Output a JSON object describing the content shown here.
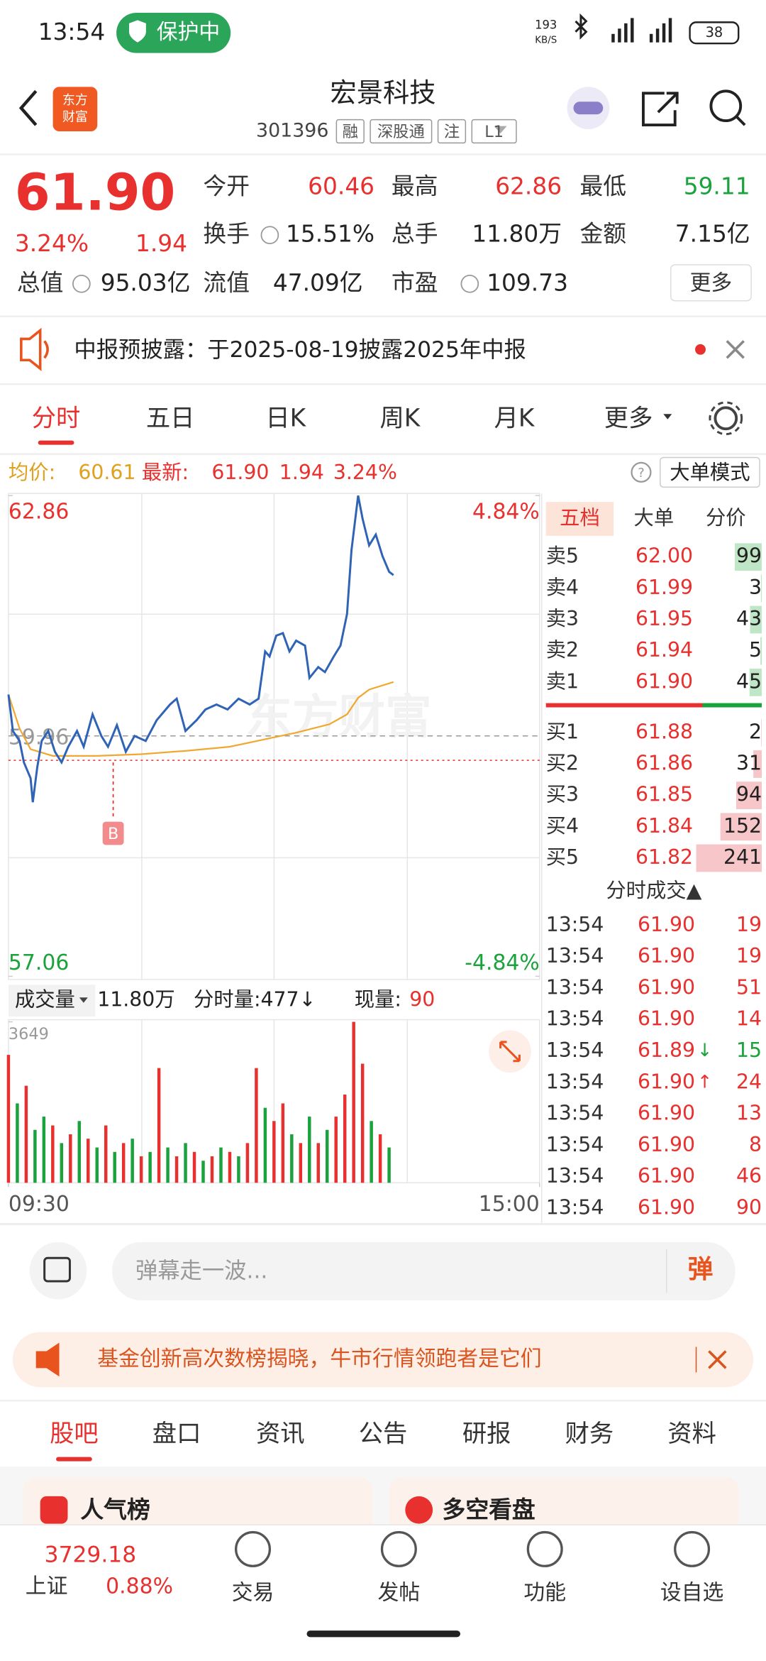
{
  "status_bar": {
    "time": "13:54",
    "badge": "保护中",
    "net_speed": "193",
    "net_unit": "KB/S",
    "battery": "38"
  },
  "header": {
    "title": "宏景科技",
    "code": "301396",
    "tags": [
      "融",
      "深股通",
      "注",
      "L1"
    ]
  },
  "quote": {
    "price": "61.90",
    "change_pct": "3.24%",
    "change": "1.94",
    "more": "更多",
    "fields": [
      {
        "label": "今开",
        "value": "60.46",
        "color": "#e8312f"
      },
      {
        "label": "最高",
        "value": "62.86",
        "color": "#e8312f"
      },
      {
        "label": "最低",
        "value": "59.11",
        "color": "#1aa33c"
      },
      {
        "label": "换手",
        "value": "15.51%",
        "color": "#222222"
      },
      {
        "label": "总手",
        "value": "11.80万",
        "color": "#222222"
      },
      {
        "label": "金额",
        "value": "7.15亿",
        "color": "#222222"
      },
      {
        "label": "总值",
        "value": "95.03亿",
        "color": "#222222"
      },
      {
        "label": "流值",
        "value": "47.09亿",
        "color": "#222222"
      },
      {
        "label": "市盈",
        "value": "109.73",
        "color": "#222222"
      }
    ]
  },
  "notice": {
    "text": "中报预披露：于2025-08-19披露2025年中报"
  },
  "tabs": {
    "items": [
      "分时",
      "五日",
      "日K",
      "周K",
      "月K",
      "更多"
    ],
    "active": 0
  },
  "chart_info": {
    "avg_label": "均价:",
    "avg": "60.61",
    "latest_label": "最新:",
    "latest": "61.90",
    "change": "1.94",
    "change_pct": "3.24%",
    "mode": "大单模式"
  },
  "chart_data": [
    {
      "type": "line",
      "ylim": [
        57.06,
        62.86
      ],
      "yticks": [
        57.06,
        62.86
      ],
      "y2lim": [
        -4.84,
        4.84
      ],
      "y2ticks": [
        {
          "value": -4.84,
          "label": "-4.84%"
        },
        {
          "value": 4.84,
          "label": "4.84%"
        }
      ],
      "xlim": [
        0,
        240
      ],
      "up_color": "#e8312f",
      "down_color": "#1aa33c",
      "reference_line": 59.96,
      "marker": "B",
      "series": [
        {
          "color": "#2f63b5",
          "x": [
            0,
            2,
            5,
            7,
            10,
            11,
            13,
            15,
            18,
            21,
            24,
            27,
            31,
            34,
            38,
            42,
            45,
            49,
            53,
            57,
            62,
            67,
            73,
            76,
            80,
            85,
            89,
            94,
            99,
            104,
            109,
            113,
            116,
            118,
            121,
            124,
            127,
            130,
            134,
            136,
            140,
            143,
            147,
            150,
            153,
            155,
            158,
            160,
            163,
            166,
            169,
            172,
            174
          ],
          "values": [
            60.46,
            60.02,
            59.9,
            59.64,
            59.45,
            59.16,
            59.58,
            59.9,
            60.02,
            59.77,
            59.64,
            59.83,
            60.02,
            59.83,
            60.22,
            59.96,
            59.83,
            60.09,
            59.77,
            59.96,
            59.9,
            60.15,
            60.34,
            60.41,
            60.02,
            60.15,
            60.28,
            60.34,
            60.28,
            60.41,
            60.34,
            60.41,
            60.98,
            60.92,
            61.17,
            61.2,
            60.98,
            61.11,
            61.05,
            60.66,
            60.79,
            60.73,
            60.92,
            61.05,
            61.43,
            62.2,
            62.86,
            62.58,
            62.26,
            62.39,
            62.13,
            61.94,
            61.9
          ]
        },
        {
          "color": "#f0a830",
          "x": [
            0,
            5,
            10,
            20,
            40,
            60,
            80,
            100,
            116,
            130,
            145,
            153,
            158,
            163,
            174
          ],
          "values": [
            60.46,
            60.05,
            59.8,
            59.72,
            59.72,
            59.74,
            59.78,
            59.83,
            59.92,
            60.0,
            60.1,
            60.22,
            60.42,
            60.52,
            60.61
          ]
        }
      ]
    },
    {
      "type": "bar",
      "ylim": [
        0,
        3649
      ],
      "yticks": [
        3649
      ],
      "xlim": [
        0,
        240
      ],
      "xticks": [
        {
          "value": 0,
          "label": "09:30"
        },
        {
          "value": 240,
          "label": "15:00"
        }
      ],
      "x": [
        0,
        4,
        8,
        12,
        16,
        20,
        24,
        28,
        32,
        36,
        40,
        44,
        48,
        52,
        56,
        60,
        64,
        68,
        72,
        76,
        80,
        84,
        88,
        92,
        96,
        100,
        104,
        108,
        112,
        116,
        120,
        124,
        128,
        132,
        136,
        140,
        144,
        148,
        152,
        156,
        160,
        164,
        168,
        172
      ],
      "values": [
        2900,
        1800,
        2200,
        1200,
        1500,
        1300,
        900,
        1100,
        1400,
        1000,
        800,
        1300,
        700,
        900,
        1000,
        600,
        700,
        2600,
        800,
        600,
        900,
        700,
        500,
        600,
        800,
        700,
        600,
        900,
        2600,
        1700,
        1400,
        1800,
        1100,
        900,
        1500,
        900,
        1200,
        1500,
        2000,
        3649,
        2700,
        1400,
        1100,
        800
      ],
      "colors": [
        "#e8312f",
        "#1aa33c",
        "#e8312f",
        "#1aa33c",
        "#1aa33c",
        "#e8312f",
        "#1aa33c",
        "#e8312f",
        "#1aa33c",
        "#e8312f",
        "#1aa33c",
        "#e8312f",
        "#1aa33c",
        "#e8312f",
        "#1aa33c",
        "#e8312f",
        "#1aa33c",
        "#e8312f",
        "#1aa33c",
        "#e8312f",
        "#1aa33c",
        "#e8312f",
        "#1aa33c",
        "#e8312f",
        "#1aa33c",
        "#e8312f",
        "#1aa33c",
        "#e8312f",
        "#e8312f",
        "#1aa33c",
        "#e8312f",
        "#e8312f",
        "#1aa33c",
        "#e8312f",
        "#1aa33c",
        "#e8312f",
        "#1aa33c",
        "#e8312f",
        "#e8312f",
        "#e8312f",
        "#e8312f",
        "#1aa33c",
        "#e8312f",
        "#1aa33c"
      ]
    }
  ],
  "volume_info": {
    "label": "成交量",
    "total": "11.80万",
    "minute_volume": "分时量:477↓",
    "current_label": "现量:",
    "current": "90"
  },
  "order_book": {
    "tabs": [
      "五档",
      "大单",
      "分价"
    ],
    "sell": [
      {
        "label": "卖5",
        "price": "62.00",
        "volume": 99
      },
      {
        "label": "卖4",
        "price": "61.99",
        "volume": 3
      },
      {
        "label": "卖3",
        "price": "61.95",
        "volume": 43
      },
      {
        "label": "卖2",
        "price": "61.94",
        "volume": 5
      },
      {
        "label": "卖1",
        "price": "61.90",
        "volume": 45
      }
    ],
    "buy": [
      {
        "label": "买1",
        "price": "61.88",
        "volume": 2
      },
      {
        "label": "买2",
        "price": "61.86",
        "volume": 31
      },
      {
        "label": "买3",
        "price": "61.85",
        "volume": 94
      },
      {
        "label": "买4",
        "price": "61.84",
        "volume": 152
      },
      {
        "label": "买5",
        "price": "61.82",
        "volume": 241
      }
    ]
  },
  "trades": {
    "title": "分时成交▲",
    "rows": [
      {
        "time": "13:54",
        "price": "61.90",
        "volume": 19,
        "volume_color": "#e8312f"
      },
      {
        "time": "13:54",
        "price": "61.90",
        "volume": 19,
        "volume_color": "#e8312f"
      },
      {
        "time": "13:54",
        "price": "61.90",
        "volume": 51,
        "volume_color": "#e8312f"
      },
      {
        "time": "13:54",
        "price": "61.90",
        "volume": 14,
        "volume_color": "#e8312f"
      },
      {
        "time": "13:54",
        "price": "61.89",
        "flag": "↓",
        "volume": 15,
        "volume_color": "#1aa33c"
      },
      {
        "time": "13:54",
        "price": "61.90",
        "flag": "↑",
        "volume": 24,
        "volume_color": "#e8312f"
      },
      {
        "time": "13:54",
        "price": "61.90",
        "volume": 13,
        "volume_color": "#e8312f"
      },
      {
        "time": "13:54",
        "price": "61.90",
        "volume": 8,
        "volume_color": "#e8312f"
      },
      {
        "time": "13:54",
        "price": "61.90",
        "volume": 46,
        "volume_color": "#e8312f"
      },
      {
        "time": "13:54",
        "price": "61.90",
        "volume": 90,
        "volume_color": "#e8312f"
      }
    ]
  },
  "comment": {
    "placeholder": "弹幕走一波...",
    "button": "弹"
  },
  "banner": {
    "text": "基金创新高次数榜揭晓，牛市行情领跑者是它们"
  },
  "section_tabs": {
    "items": [
      "股吧",
      "盘口",
      "资讯",
      "公告",
      "研报",
      "财务",
      "资料"
    ],
    "active": 0
  },
  "cards": [
    "人气榜",
    "多空看盘"
  ],
  "bottom_nav": {
    "index_name": "上证",
    "index_value": "3729.18",
    "index_change": "0.88%",
    "items": [
      "交易",
      "发帖",
      "功能",
      "设自选"
    ]
  }
}
